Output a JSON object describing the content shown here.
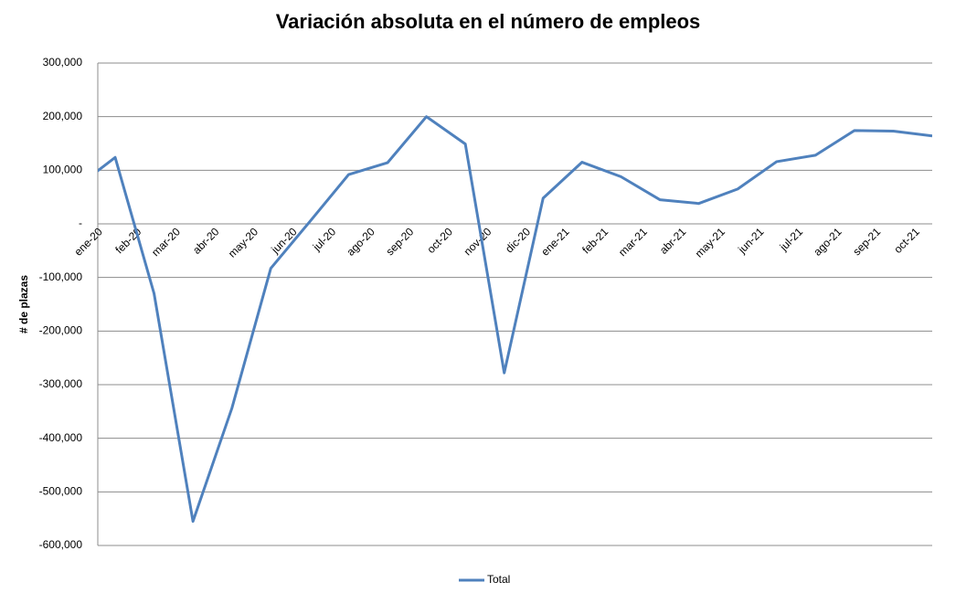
{
  "chart_data": {
    "type": "line",
    "title": "Variación absoluta en el número de empleos",
    "y_label": "# de plazas",
    "categories": [
      "ene-20",
      "feb-20",
      "mar-20",
      "abr-20",
      "may-20",
      "jun-20",
      "jul-20",
      "ago-20",
      "sep-20",
      "oct-20",
      "nov-20",
      "dic-20",
      "ene-21",
      "feb-21",
      "mar-21",
      "abr-21",
      "may-21",
      "jun-21",
      "jul-21",
      "ago-21",
      "sep-21",
      "oct-21",
      null
    ],
    "series": [
      {
        "name": "Total",
        "color": "#4f81bd",
        "values": [
          68000,
          124000,
          -130000,
          -555000,
          -344000,
          -83000,
          4000,
          92000,
          114000,
          200000,
          149000,
          -278000,
          48000,
          115000,
          88000,
          45000,
          38000,
          65000,
          116000,
          128000,
          174000,
          173000,
          164000
        ]
      }
    ],
    "ylim": [
      -600000,
      300000
    ],
    "yticks": [
      {
        "value": -600000,
        "label": "-600,000"
      },
      {
        "value": -500000,
        "label": "-500,000"
      },
      {
        "value": -400000,
        "label": "-400,000"
      },
      {
        "value": -300000,
        "label": "-300,000"
      },
      {
        "value": -200000,
        "label": "-200,000"
      },
      {
        "value": -100000,
        "label": "-100,000"
      },
      {
        "value": 0,
        "label": "-"
      },
      {
        "value": 100000,
        "label": "100,000"
      },
      {
        "value": 200000,
        "label": "200,000"
      },
      {
        "value": 300000,
        "label": "300,000"
      }
    ],
    "grid": true,
    "legend": "bottom"
  }
}
